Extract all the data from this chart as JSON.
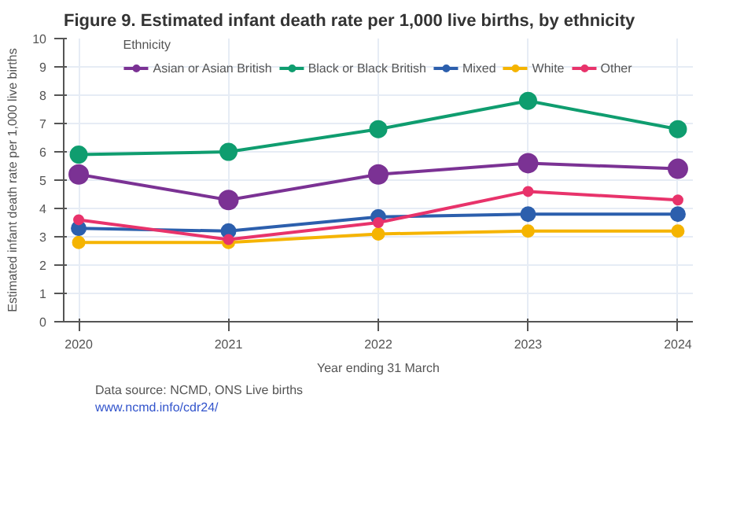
{
  "chart_data": {
    "type": "line",
    "title": "Figure 9. Estimated infant death rate per 1,000 live births, by ethnicity",
    "xlabel": "Year ending 31 March",
    "ylabel": "Estimated infant death rate per 1,000 live births",
    "legend_title": "Ethnicity",
    "x": [
      2020,
      2021,
      2022,
      2023,
      2024
    ],
    "series": [
      {
        "name": "Asian or Asian British",
        "color": "#7b3294",
        "values": [
          5.2,
          4.3,
          5.2,
          5.6,
          5.4
        ]
      },
      {
        "name": "Black or Black British",
        "color": "#0f9d6f",
        "values": [
          5.9,
          6.0,
          6.8,
          7.8,
          6.8
        ]
      },
      {
        "name": "Mixed",
        "color": "#2c5fad",
        "values": [
          3.3,
          3.2,
          3.7,
          3.8,
          3.8
        ]
      },
      {
        "name": "White",
        "color": "#f5b400",
        "values": [
          2.8,
          2.8,
          3.1,
          3.2,
          3.2
        ]
      },
      {
        "name": "Other",
        "color": "#e8336b",
        "values": [
          3.6,
          2.9,
          3.5,
          4.6,
          4.3
        ]
      }
    ],
    "xlim": [
      2019.9,
      2024.1
    ],
    "xticks": [
      2020,
      2021,
      2022,
      2023,
      2024
    ],
    "ylim": [
      0,
      10
    ],
    "yticks": [
      0,
      1,
      2,
      3,
      4,
      5,
      6,
      7,
      8,
      9,
      10
    ],
    "grid": true,
    "legend": "top",
    "marker": "circle",
    "line_style": "solid",
    "annotations": [
      "Data source: NCMD, ONS Live births",
      "www.ncmd.info/cdr24/"
    ]
  }
}
